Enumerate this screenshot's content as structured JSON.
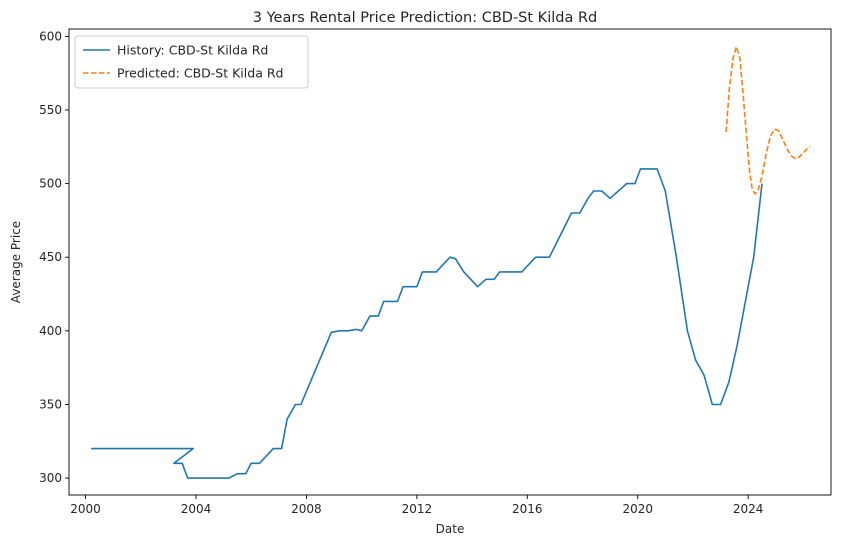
{
  "chart_data": {
    "type": "line",
    "title": "3 Years Rental Price Prediction: CBD-St Kilda Rd",
    "xlabel": "Date",
    "ylabel": "Average Price",
    "xlim": [
      1999.4,
      2027.0
    ],
    "ylim": [
      288.5,
      605.0
    ],
    "xticks": [
      2000,
      2004,
      2008,
      2012,
      2016,
      2020,
      2024
    ],
    "yticks": [
      300,
      350,
      400,
      450,
      500,
      550,
      600
    ],
    "grid": false,
    "legend_position": "top-left",
    "series": [
      {
        "name": "History: CBD-St Kilda Rd",
        "color": "#1f77b4",
        "style": "solid",
        "points": [
          [
            2000.2,
            320
          ],
          [
            2003.9,
            320
          ],
          [
            2003.2,
            310
          ],
          [
            2003.5,
            310
          ],
          [
            2003.7,
            300
          ],
          [
            2005.2,
            300
          ],
          [
            2005.5,
            303
          ],
          [
            2005.8,
            303
          ],
          [
            2006.0,
            310
          ],
          [
            2006.3,
            310
          ],
          [
            2006.8,
            320
          ],
          [
            2007.1,
            320
          ],
          [
            2007.3,
            340
          ],
          [
            2007.6,
            350
          ],
          [
            2007.8,
            350
          ],
          [
            2008.9,
            399
          ],
          [
            2009.2,
            400
          ],
          [
            2009.5,
            400
          ],
          [
            2009.8,
            401
          ],
          [
            2010.0,
            400
          ],
          [
            2010.3,
            410
          ],
          [
            2010.6,
            410
          ],
          [
            2010.8,
            420
          ],
          [
            2011.3,
            420
          ],
          [
            2011.5,
            430
          ],
          [
            2012.0,
            430
          ],
          [
            2012.2,
            440
          ],
          [
            2012.7,
            440
          ],
          [
            2013.2,
            450
          ],
          [
            2013.4,
            449
          ],
          [
            2013.7,
            440
          ],
          [
            2014.2,
            430
          ],
          [
            2014.5,
            435
          ],
          [
            2014.8,
            435
          ],
          [
            2015.0,
            440
          ],
          [
            2015.8,
            440
          ],
          [
            2016.3,
            450
          ],
          [
            2016.8,
            450
          ],
          [
            2017.6,
            480
          ],
          [
            2017.9,
            480
          ],
          [
            2018.2,
            490
          ],
          [
            2018.4,
            495
          ],
          [
            2018.7,
            495
          ],
          [
            2019.0,
            490
          ],
          [
            2019.6,
            500
          ],
          [
            2019.9,
            500
          ],
          [
            2020.1,
            510
          ],
          [
            2020.7,
            510
          ],
          [
            2021.0,
            495
          ],
          [
            2021.4,
            450
          ],
          [
            2021.8,
            400
          ],
          [
            2022.1,
            380
          ],
          [
            2022.4,
            370
          ],
          [
            2022.7,
            350
          ],
          [
            2023.0,
            350
          ],
          [
            2023.3,
            365
          ],
          [
            2023.6,
            390
          ],
          [
            2023.9,
            420
          ],
          [
            2024.2,
            450
          ],
          [
            2024.5,
            500
          ]
        ]
      },
      {
        "name": "Predicted: CBD-St Kilda Rd",
        "color": "#ff7f0e",
        "style": "dashed",
        "points": [
          [
            2023.2,
            535
          ],
          [
            2023.32,
            565
          ],
          [
            2023.45,
            585
          ],
          [
            2023.57,
            593
          ],
          [
            2023.7,
            585
          ],
          [
            2023.82,
            560
          ],
          [
            2023.95,
            530
          ],
          [
            2024.05,
            508
          ],
          [
            2024.15,
            496
          ],
          [
            2024.25,
            493
          ],
          [
            2024.35,
            495
          ],
          [
            2024.5,
            505
          ],
          [
            2024.65,
            520
          ],
          [
            2024.8,
            532
          ],
          [
            2024.95,
            537
          ],
          [
            2025.1,
            536
          ],
          [
            2025.25,
            530
          ],
          [
            2025.4,
            524
          ],
          [
            2025.55,
            519
          ],
          [
            2025.7,
            517
          ],
          [
            2025.85,
            518
          ],
          [
            2026.0,
            521
          ],
          [
            2026.15,
            524
          ],
          [
            2026.25,
            525
          ]
        ]
      }
    ]
  }
}
